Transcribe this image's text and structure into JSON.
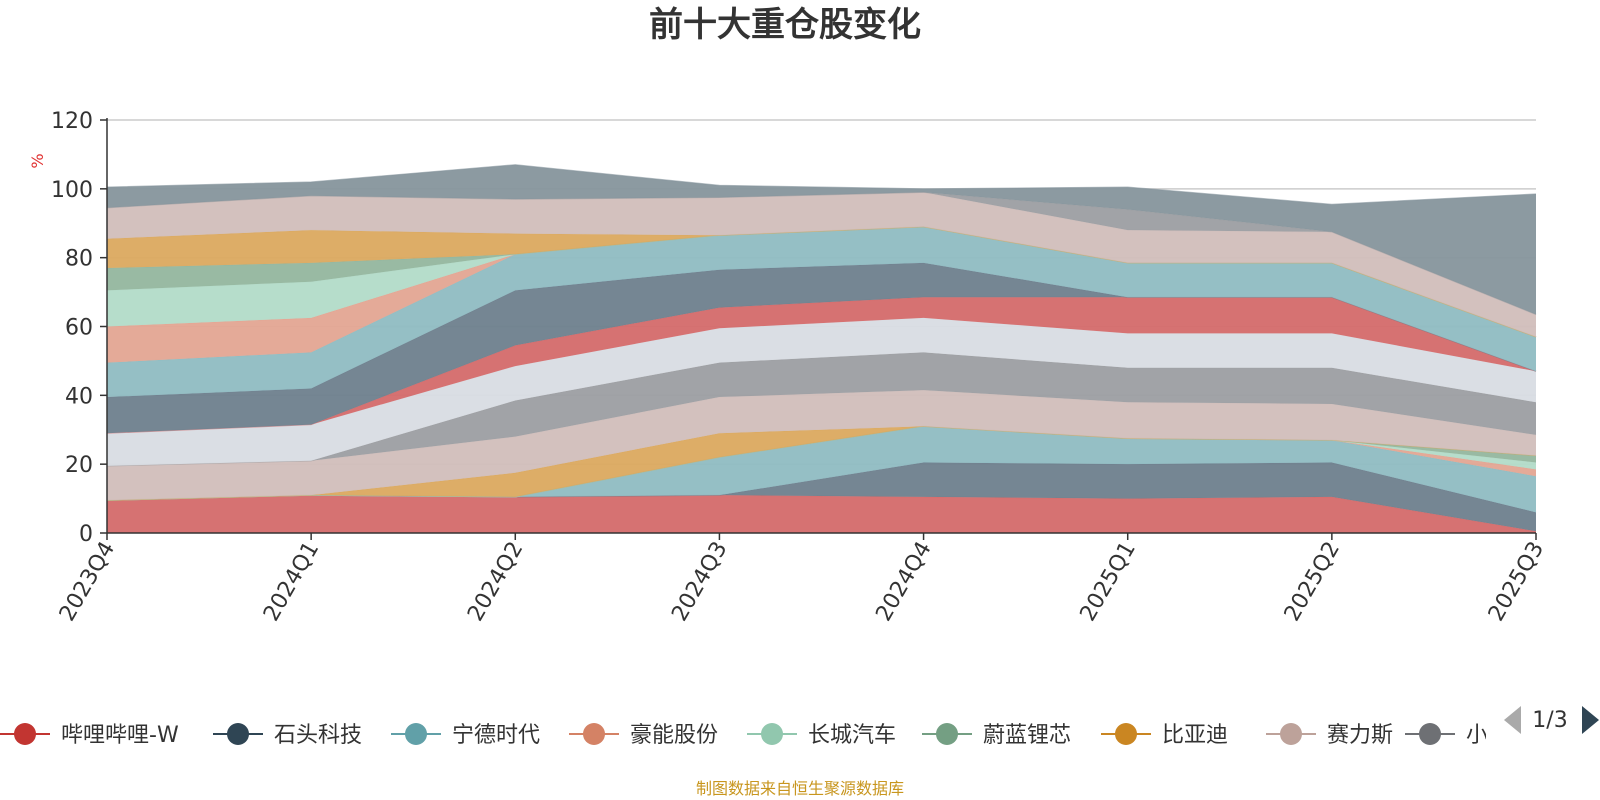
{
  "chart_data": {
    "type": "area",
    "stacked": true,
    "title": "前十大重仓股变化",
    "ylabel": "%",
    "ylim": [
      0,
      120
    ],
    "yticks": [
      0,
      20,
      40,
      60,
      80,
      100,
      120
    ],
    "grid": true,
    "legend_position": "bottom",
    "categories": [
      "2023Q4",
      "2024Q1",
      "2024Q2",
      "2024Q3",
      "2024Q4",
      "2025Q1",
      "2025Q2",
      "2025Q3"
    ],
    "series": [
      {
        "name": "哔哩哔哩-W",
        "color": "#d46a6a",
        "values": [
          9.5,
          11,
          10.5,
          11,
          10.5,
          10,
          10.5,
          0.5
        ]
      },
      {
        "name": "石头科技",
        "color": "#6e7f8d",
        "values": [
          0,
          0,
          0,
          0,
          10,
          10,
          10,
          5.5
        ]
      },
      {
        "name": "宁德时代",
        "color": "#8fbcc2",
        "values": [
          0,
          0,
          0,
          11,
          10.5,
          7.5,
          6.5,
          10.5
        ]
      },
      {
        "name": "豪能股份",
        "color": "#e3a592",
        "values": [
          0,
          0,
          0,
          0,
          0,
          0,
          0,
          2
        ]
      },
      {
        "name": "长城汽车",
        "color": "#b2dbc8",
        "values": [
          0,
          0,
          0,
          0,
          0,
          0,
          0,
          2
        ]
      },
      {
        "name": "蔚蓝锂芯",
        "color": "#93b69e",
        "values": [
          0,
          0,
          0,
          0,
          0,
          0,
          0,
          2
        ]
      },
      {
        "name": "比亚迪",
        "color": "#dba95f",
        "values": [
          0,
          0,
          7,
          7,
          0,
          0,
          0,
          0
        ]
      },
      {
        "name": "赛力斯",
        "color": "#d1beba",
        "values": [
          10,
          10,
          10.5,
          10.5,
          10.5,
          10.5,
          10.5,
          6
        ]
      },
      {
        "name": "小",
        "color": "#9c9ea2",
        "values": [
          0,
          0,
          10.5,
          10,
          11,
          10,
          10.5,
          9.5
        ]
      },
      {
        "name": "",
        "color": "#d8dce3",
        "values": [
          9.5,
          10.5,
          10,
          10,
          10,
          10,
          10,
          9
        ]
      },
      {
        "name": "",
        "color": "#d46a6a",
        "values": [
          0,
          0,
          6,
          6,
          6,
          10.5,
          10.5,
          0
        ]
      },
      {
        "name": "",
        "color": "#6e7f8d",
        "values": [
          10.5,
          10.5,
          16,
          11,
          10,
          0,
          0,
          0
        ]
      },
      {
        "name": "",
        "color": "#8fbcc2",
        "values": [
          10,
          10.5,
          10.5,
          10,
          10.5,
          10,
          10,
          10
        ]
      },
      {
        "name": "",
        "color": "#e3a592",
        "values": [
          10.5,
          10,
          0,
          0,
          0,
          0,
          0,
          0
        ]
      },
      {
        "name": "",
        "color": "#b2dbc8",
        "values": [
          10.5,
          10.5,
          0,
          0,
          0,
          0,
          0,
          0
        ]
      },
      {
        "name": "",
        "color": "#93b69e",
        "values": [
          6.5,
          5.5,
          0,
          0,
          0,
          0,
          0,
          0
        ]
      },
      {
        "name": "",
        "color": "#dba95f",
        "values": [
          8.5,
          9.5,
          6,
          0,
          0,
          0,
          0,
          0
        ]
      },
      {
        "name": "",
        "color": "#d1beba",
        "values": [
          9,
          10,
          10,
          11,
          10,
          9.5,
          9,
          6.5
        ]
      },
      {
        "name": "",
        "color": "#9c9ea2",
        "values": [
          0,
          0,
          0,
          0,
          0,
          6,
          0,
          0
        ]
      },
      {
        "name": "",
        "color": "#86959c",
        "values": [
          6,
          4,
          10,
          3.5,
          1,
          6.5,
          8,
          35
        ]
      }
    ]
  },
  "legend": {
    "items": [
      {
        "label": "哔哩哔哩-W",
        "color": "#c23531"
      },
      {
        "label": "石头科技",
        "color": "#2f4554"
      },
      {
        "label": "宁德时代",
        "color": "#61a0a8"
      },
      {
        "label": "豪能股份",
        "color": "#d48265"
      },
      {
        "label": "长城汽车",
        "color": "#91c7ae"
      },
      {
        "label": "蔚蓝锂芯",
        "color": "#749f83"
      },
      {
        "label": "比亚迪",
        "color": "#ca8622"
      },
      {
        "label": "赛力斯",
        "color": "#bda29a"
      },
      {
        "label": "小",
        "color": "#6e7074"
      }
    ],
    "page_indicator": "1/3"
  },
  "source_note": "制图数据来自恒生聚源数据库"
}
